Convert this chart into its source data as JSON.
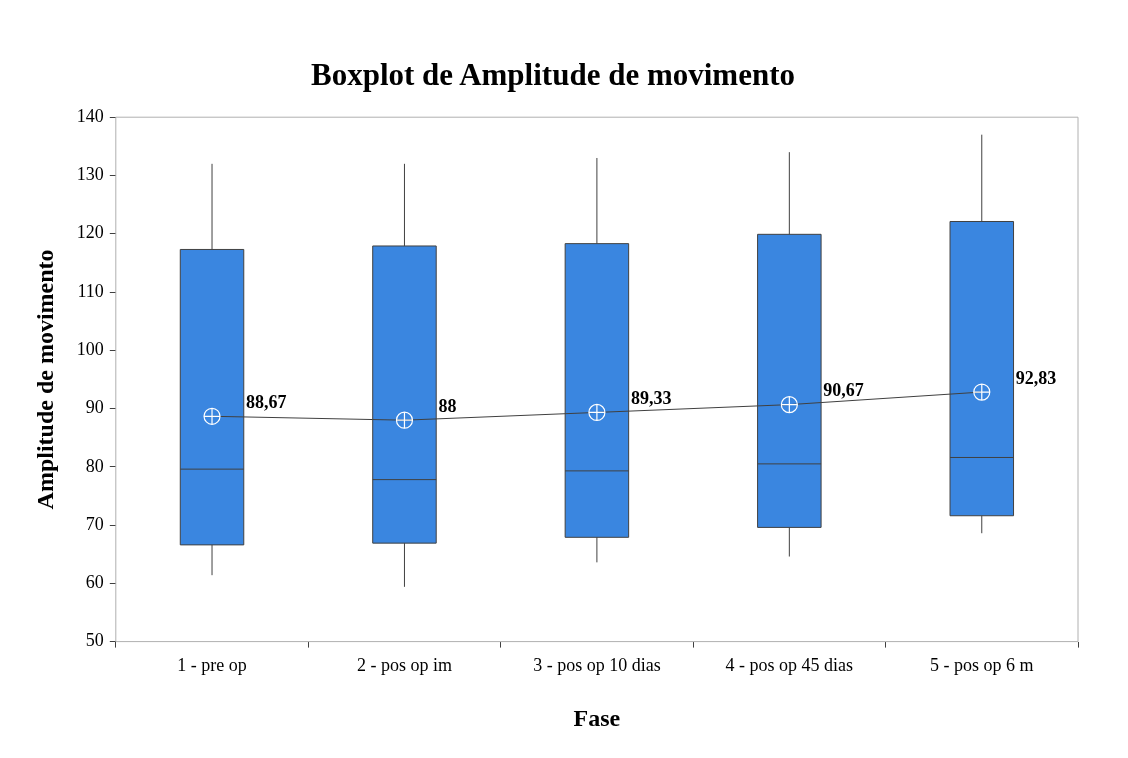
{
  "chart_data": {
    "type": "box",
    "title": "Boxplot de Amplitude de movimento",
    "xlabel": "Fase",
    "ylabel": "Amplitude de movimento",
    "categories": [
      "1 - pre op",
      "2 - pos op im",
      "3 - pos op 10 dias",
      "4 - pos op 45 dias",
      "5 - pos op 6 m"
    ],
    "color": "#3a86e0",
    "boxes": [
      {
        "low": 61.4,
        "q1": 66.6,
        "median": 79.6,
        "q3": 117.3,
        "high": 132
      },
      {
        "low": 59.4,
        "q1": 66.9,
        "median": 77.8,
        "q3": 117.9,
        "high": 132
      },
      {
        "low": 63.6,
        "q1": 67.9,
        "median": 79.3,
        "q3": 118.3,
        "high": 133
      },
      {
        "low": 64.6,
        "q1": 69.6,
        "median": 80.5,
        "q3": 119.9,
        "high": 134
      },
      {
        "low": 68.6,
        "q1": 71.6,
        "median": 81.6,
        "q3": 122.1,
        "high": 137
      }
    ],
    "series": [
      {
        "type": "line",
        "color": "#404040",
        "values": [
          88.67,
          88,
          89.33,
          90.67,
          92.83
        ],
        "value_labels": [
          "88,67",
          "88",
          "89,33",
          "90,67",
          "92,83"
        ]
      }
    ],
    "marker": "circle",
    "ylim": [
      50,
      140
    ],
    "yticks": [
      50,
      60,
      70,
      80,
      90,
      100,
      110,
      120,
      130,
      140
    ],
    "grid": false,
    "legend": false
  }
}
